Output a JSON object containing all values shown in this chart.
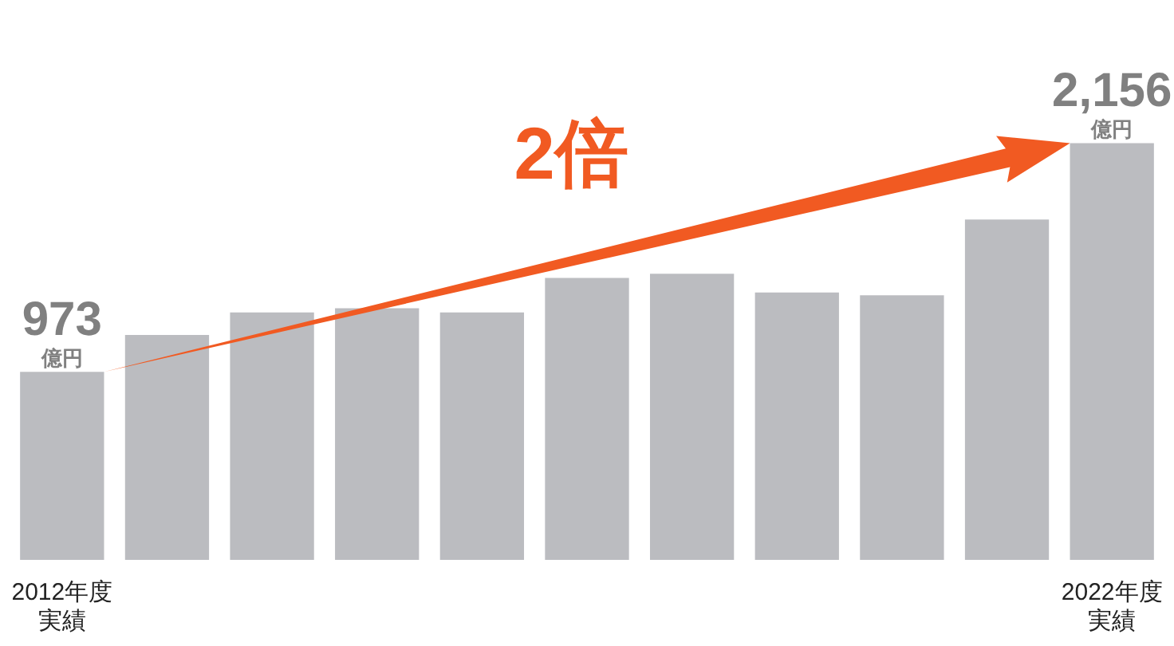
{
  "chart_data": {
    "type": "bar",
    "categories": [
      "2012年度実績",
      null,
      null,
      null,
      null,
      null,
      null,
      null,
      null,
      null,
      "2022年度実績"
    ],
    "values": [
      973,
      1163,
      1280,
      1302,
      1280,
      1458,
      1480,
      1383,
      1369,
      1761,
      2156
    ],
    "color": "#bbbcc0",
    "value_labels": [
      "973\n億円",
      null,
      null,
      null,
      null,
      null,
      null,
      null,
      null,
      null,
      "2,156\n億円"
    ],
    "annotations": [
      "2倍"
    ]
  }
}
